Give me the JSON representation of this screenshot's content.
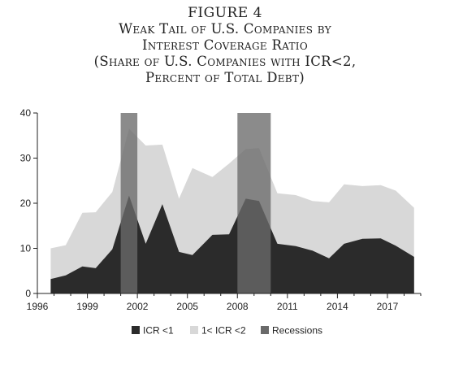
{
  "titles": {
    "figure": "FIGURE 4",
    "line1": "Weak Tail of U.S. Companies by",
    "line2": "Interest Coverage Ratio",
    "line3": "(Share of U.S. Companies with ICR<2,",
    "line4": "Percent of Total Debt)"
  },
  "chart_data": {
    "type": "area",
    "title": "",
    "xlabel": "",
    "ylabel": "",
    "xlim": [
      1996,
      2019
    ],
    "ylim": [
      0,
      40
    ],
    "x_ticks": [
      1996,
      1999,
      2002,
      2005,
      2008,
      2011,
      2014,
      2017
    ],
    "y_ticks": [
      0,
      10,
      20,
      30,
      40
    ],
    "grid": false,
    "legend_position": "bottom",
    "x": [
      1996.8,
      1997.7,
      1998.7,
      1999.5,
      2000.5,
      2001.5,
      2002.5,
      2003.5,
      2004.5,
      2005.3,
      2006.5,
      2007.5,
      2008.5,
      2009.3,
      2010.4,
      2011.5,
      2012.5,
      2013.5,
      2014.4,
      2015.5,
      2016.6,
      2017.5,
      2018.6
    ],
    "series": [
      {
        "name": "ICR <1",
        "color": "#2b2b2b",
        "values": [
          3.2,
          4.0,
          6.0,
          5.6,
          9.8,
          21.7,
          11.0,
          19.8,
          9.2,
          8.5,
          13.0,
          13.1,
          21.0,
          20.5,
          11.0,
          10.5,
          9.5,
          7.8,
          11.0,
          12.1,
          12.2,
          10.6,
          8.1
        ]
      },
      {
        "name": "1< ICR <2",
        "color": "#d8d8d8",
        "values": [
          10.0,
          10.7,
          17.9,
          18.0,
          22.5,
          36.5,
          32.8,
          33.0,
          21.0,
          27.8,
          25.8,
          28.8,
          32.0,
          32.2,
          22.2,
          21.8,
          20.5,
          20.2,
          24.2,
          23.8,
          24.0,
          22.8,
          19.0
        ]
      }
    ],
    "recessions": {
      "name": "Recessions",
      "color": "#6a6a6a",
      "periods": [
        [
          2001.0,
          2002.0
        ],
        [
          2008.0,
          2010.0
        ]
      ]
    }
  }
}
